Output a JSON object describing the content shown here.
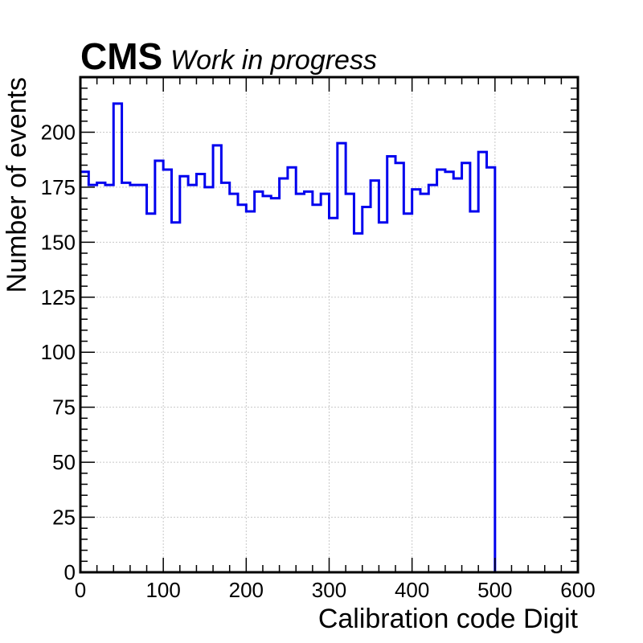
{
  "chart_data": {
    "type": "bar",
    "title": "CMS",
    "subtitle": "Work in progress",
    "xlabel": "Calibration code Digit",
    "ylabel": "Number of events",
    "xlim": [
      0,
      600
    ],
    "ylim": [
      0,
      225
    ],
    "xticks": [
      0,
      100,
      200,
      300,
      400,
      500,
      600
    ],
    "yticks": [
      0,
      25,
      50,
      75,
      100,
      125,
      150,
      175,
      200
    ],
    "grid": true,
    "bin_width": 10,
    "bin_edges_start": [
      0,
      10,
      20,
      30,
      40,
      50,
      60,
      70,
      80,
      90,
      100,
      110,
      120,
      130,
      140,
      150,
      160,
      170,
      180,
      190,
      200,
      210,
      220,
      230,
      240,
      250,
      260,
      270,
      280,
      290,
      300,
      310,
      320,
      330,
      340,
      350,
      360,
      370,
      380,
      390,
      400,
      410,
      420,
      430,
      440,
      450,
      460,
      470,
      480,
      490
    ],
    "values": [
      182,
      176,
      177,
      176,
      213,
      177,
      176,
      176,
      163,
      187,
      183,
      159,
      180,
      176,
      181,
      175,
      194,
      177,
      172,
      167,
      164,
      173,
      171,
      170,
      179,
      184,
      172,
      173,
      167,
      172,
      161,
      195,
      172,
      154,
      166,
      178,
      159,
      189,
      186,
      163,
      174,
      172,
      176,
      183,
      182,
      179,
      186,
      164,
      191,
      184
    ],
    "line_color": "#0000ee",
    "grid_color": "#c8c8c8"
  }
}
